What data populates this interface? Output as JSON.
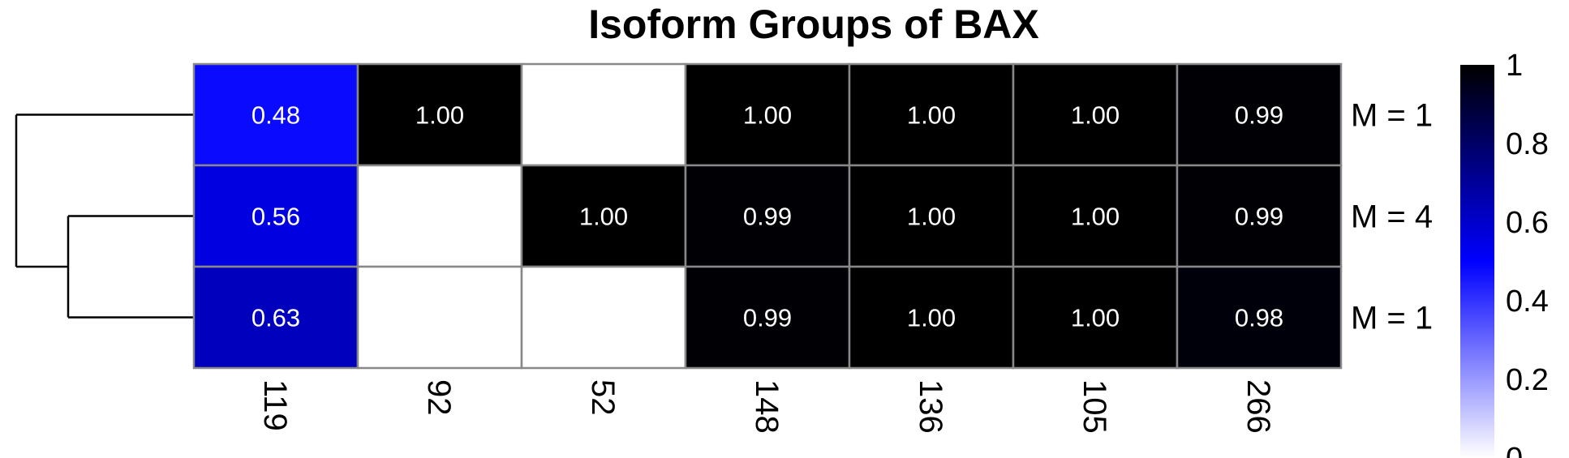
{
  "chart_data": {
    "type": "heatmap",
    "title": "Isoform Groups of BAX",
    "columns": [
      "119",
      "92",
      "52",
      "148",
      "136",
      "105",
      "266"
    ],
    "rows": [
      "M = 1",
      "M = 4",
      "M = 1"
    ],
    "values": [
      [
        0.48,
        1.0,
        null,
        1.0,
        1.0,
        1.0,
        0.99
      ],
      [
        0.56,
        null,
        1.0,
        0.99,
        1.0,
        1.0,
        0.99
      ],
      [
        0.63,
        null,
        null,
        0.99,
        1.0,
        1.0,
        0.98
      ]
    ],
    "cell_labels": [
      [
        "0.48",
        "1.00",
        "",
        "1.00",
        "1.00",
        "1.00",
        "0.99"
      ],
      [
        "0.56",
        "",
        "1.00",
        "0.99",
        "1.00",
        "1.00",
        "0.99"
      ],
      [
        "0.63",
        "",
        "",
        "0.99",
        "1.00",
        "1.00",
        "0.98"
      ]
    ],
    "color_scale": {
      "min": 0,
      "max": 1,
      "stops": [
        "#ffffff",
        "#0000ff",
        "#000000"
      ],
      "legend_ticks": [
        "0",
        "0.2",
        "0.4",
        "0.6",
        "0.8",
        "1"
      ],
      "legend_position": "right"
    },
    "dendrogram": "rows",
    "empty_cell_color": "#ffffff",
    "grid_color": "#888888"
  }
}
